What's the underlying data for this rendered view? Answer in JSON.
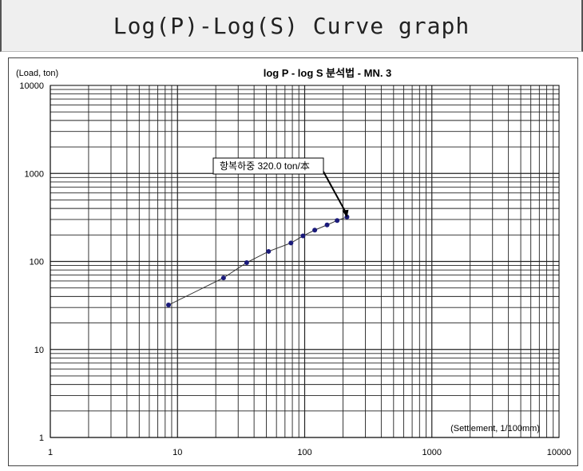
{
  "header": {
    "title": "Log(P)-Log(S) Curve graph"
  },
  "chart_data": {
    "type": "scatter",
    "title": "log P - log S 분석법 - MN. 3",
    "ylabel": "(Load, ton)",
    "xlabel": "(Settlement, 1/100mm)",
    "xscale": "log",
    "yscale": "log",
    "xlim": [
      1,
      10000
    ],
    "ylim": [
      1,
      10000
    ],
    "xticks": [
      "1",
      "10",
      "100",
      "1000",
      "10000"
    ],
    "yticks": [
      "1",
      "10",
      "100",
      "1000",
      "10000"
    ],
    "grid": true,
    "series": [
      {
        "x": [
          8.5,
          23,
          35,
          52,
          78,
          97,
          120,
          150,
          180,
          215
        ],
        "y": [
          32,
          65,
          97,
          130,
          162,
          195,
          227,
          260,
          292,
          320
        ]
      }
    ],
    "annotation": {
      "text": "항복하중 320.0 ton/本",
      "x": 215,
      "y": 320
    },
    "colors": {
      "series": "#1a1a7a",
      "grid": "#222222",
      "line": "#333333"
    }
  }
}
